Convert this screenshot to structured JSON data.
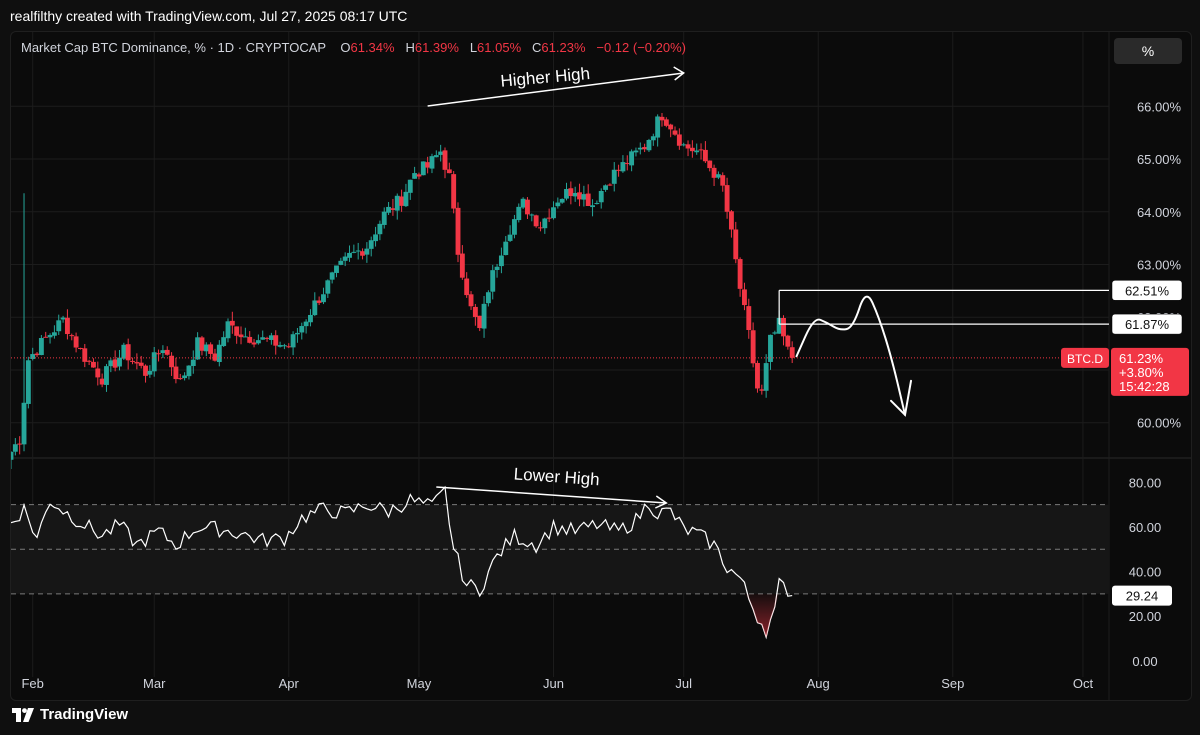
{
  "header": {
    "attribution": "realfilthy created with TradingView.com, Jul 27, 2025 08:17 UTC"
  },
  "legend": {
    "symbol": "Market Cap BTC Dominance, % · 1D · CRYPTOCAP",
    "o_label": "O",
    "o_value": "61.34%",
    "h_label": "H",
    "h_value": "61.39%",
    "l_label": "L",
    "l_value": "61.05%",
    "c_label": "C",
    "c_value": "61.23%",
    "change": "−0.12 (−0.20%)"
  },
  "scale_button": "%",
  "footer": {
    "brand": "TradingView"
  },
  "colors": {
    "up": "#26a69a",
    "down": "#f23645",
    "background": "#0b0b0b",
    "grid": "#1c1c1c",
    "text": "#d1d4dc",
    "annotation": "#ffffff"
  },
  "chart_data": [
    {
      "type": "candlestick",
      "series_label": "BTC.D",
      "x_ticks": [
        "Feb",
        "Mar",
        "Apr",
        "May",
        "Jun",
        "Jul",
        "Aug",
        "Sep",
        "Oct"
      ],
      "x_range": [
        "2025-01-27",
        "2025-10-07"
      ],
      "y_ticks": [
        "60.00%",
        "61.00%",
        "62.00%",
        "63.00%",
        "64.00%",
        "65.00%",
        "66.00%"
      ],
      "ylim": [
        59.35,
        66.65
      ],
      "last_value": {
        "label": "BTC.D",
        "value": "61.23%",
        "change": "+3.80%",
        "countdown": "15:42:28",
        "price": 61.23
      },
      "levels": [
        {
          "value": 62.51,
          "label": "62.51%"
        },
        {
          "value": 61.87,
          "label": "61.87%"
        }
      ],
      "annotations": [
        {
          "text": "Higher High"
        }
      ],
      "anchors": [
        [
          "2025-01-27",
          59.45
        ],
        [
          "2025-01-29",
          59.7
        ],
        [
          "2025-01-31",
          61.2
        ],
        [
          "2025-02-04",
          61.6
        ],
        [
          "2025-02-08",
          61.95
        ],
        [
          "2025-02-12",
          61.35
        ],
        [
          "2025-02-17",
          60.85
        ],
        [
          "2025-02-22",
          61.35
        ],
        [
          "2025-02-27",
          60.95
        ],
        [
          "2025-03-03",
          61.45
        ],
        [
          "2025-03-07",
          60.75
        ],
        [
          "2025-03-11",
          61.5
        ],
        [
          "2025-03-15",
          61.25
        ],
        [
          "2025-03-18",
          61.85
        ],
        [
          "2025-03-22",
          61.65
        ],
        [
          "2025-03-27",
          61.55
        ],
        [
          "2025-04-01",
          61.45
        ],
        [
          "2025-04-04",
          61.85
        ],
        [
          "2025-04-07",
          62.25
        ],
        [
          "2025-04-11",
          62.75
        ],
        [
          "2025-04-15",
          63.15
        ],
        [
          "2025-04-19",
          63.35
        ],
        [
          "2025-04-23",
          63.95
        ],
        [
          "2025-04-27",
          64.25
        ],
        [
          "2025-04-30",
          64.75
        ],
        [
          "2025-05-03",
          64.85
        ],
        [
          "2025-05-06",
          65.15
        ],
        [
          "2025-05-08",
          64.65
        ],
        [
          "2025-05-10",
          63.25
        ],
        [
          "2025-05-13",
          62.15
        ],
        [
          "2025-05-15",
          61.75
        ],
        [
          "2025-05-17",
          62.55
        ],
        [
          "2025-05-21",
          63.55
        ],
        [
          "2025-05-25",
          64.15
        ],
        [
          "2025-05-29",
          63.75
        ],
        [
          "2025-06-02",
          64.25
        ],
        [
          "2025-06-06",
          64.45
        ],
        [
          "2025-06-10",
          64.15
        ],
        [
          "2025-06-14",
          64.65
        ],
        [
          "2025-06-18",
          64.95
        ],
        [
          "2025-06-22",
          65.25
        ],
        [
          "2025-06-26",
          65.85
        ],
        [
          "2025-06-28",
          65.65
        ],
        [
          "2025-07-01",
          65.25
        ],
        [
          "2025-07-04",
          65.15
        ],
        [
          "2025-07-08",
          64.75
        ],
        [
          "2025-07-10",
          64.45
        ],
        [
          "2025-07-12",
          63.55
        ],
        [
          "2025-07-14",
          62.55
        ],
        [
          "2025-07-16",
          61.65
        ],
        [
          "2025-07-18",
          60.65
        ],
        [
          "2025-07-19",
          60.55
        ],
        [
          "2025-07-21",
          61.55
        ],
        [
          "2025-07-23",
          61.85
        ],
        [
          "2025-07-25",
          61.35
        ],
        [
          "2025-07-26",
          61.23
        ]
      ],
      "path_sketch": [
        [
          "2025-07-27",
          61.26
        ],
        [
          "2025-07-31",
          62.0
        ],
        [
          "2025-08-03",
          61.9
        ],
        [
          "2025-08-06",
          61.75
        ],
        [
          "2025-08-09",
          61.8
        ],
        [
          "2025-08-12",
          62.55
        ],
        [
          "2025-08-15",
          62.0
        ],
        [
          "2025-08-18",
          61.2
        ],
        [
          "2025-08-21",
          60.15
        ]
      ]
    },
    {
      "type": "line",
      "series_label": "RSI",
      "y_ticks": [
        "0.00",
        "20.00",
        "40.00",
        "60.00",
        "80.00"
      ],
      "ylim": [
        -5,
        90
      ],
      "bands": [
        70,
        50,
        30
      ],
      "last_value": {
        "value": 29.24,
        "label": "29.24"
      },
      "annotations": [
        {
          "text": "Lower High"
        }
      ],
      "anchors": [
        [
          "2025-01-27",
          62
        ],
        [
          "2025-01-30",
          68
        ],
        [
          "2025-02-02",
          55
        ],
        [
          "2025-02-05",
          72
        ],
        [
          "2025-02-09",
          66
        ],
        [
          "2025-02-13",
          61
        ],
        [
          "2025-02-17",
          56
        ],
        [
          "2025-02-21",
          61
        ],
        [
          "2025-02-25",
          52
        ],
        [
          "2025-03-02",
          58
        ],
        [
          "2025-03-06",
          52
        ],
        [
          "2025-03-11",
          60
        ],
        [
          "2025-03-16",
          59
        ],
        [
          "2025-03-21",
          57
        ],
        [
          "2025-03-26",
          54
        ],
        [
          "2025-03-31",
          55
        ],
        [
          "2025-04-04",
          64
        ],
        [
          "2025-04-09",
          68
        ],
        [
          "2025-04-14",
          66
        ],
        [
          "2025-04-19",
          70
        ],
        [
          "2025-04-24",
          67
        ],
        [
          "2025-04-29",
          72
        ],
        [
          "2025-05-04",
          69
        ],
        [
          "2025-05-07",
          76
        ],
        [
          "2025-05-09",
          50
        ],
        [
          "2025-05-12",
          34
        ],
        [
          "2025-05-15",
          32
        ],
        [
          "2025-05-19",
          47
        ],
        [
          "2025-05-23",
          56
        ],
        [
          "2025-05-28",
          52
        ],
        [
          "2025-06-01",
          60
        ],
        [
          "2025-06-06",
          58
        ],
        [
          "2025-06-11",
          61
        ],
        [
          "2025-06-16",
          58
        ],
        [
          "2025-06-20",
          63
        ],
        [
          "2025-06-23",
          71
        ],
        [
          "2025-06-25",
          66
        ],
        [
          "2025-06-28",
          67
        ],
        [
          "2025-07-01",
          59
        ],
        [
          "2025-07-04",
          57
        ],
        [
          "2025-07-08",
          52
        ],
        [
          "2025-07-11",
          42
        ],
        [
          "2025-07-14",
          37
        ],
        [
          "2025-07-16",
          28
        ],
        [
          "2025-07-18",
          20
        ],
        [
          "2025-07-20",
          14
        ],
        [
          "2025-07-22",
          22
        ],
        [
          "2025-07-23",
          34
        ],
        [
          "2025-07-25",
          32
        ],
        [
          "2025-07-26",
          29.24
        ]
      ]
    }
  ]
}
